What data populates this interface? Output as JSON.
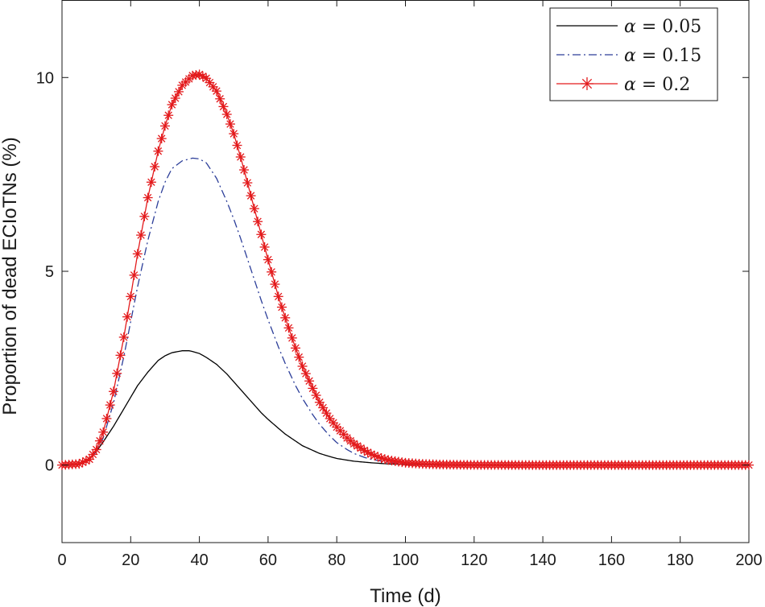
{
  "chart_data": {
    "type": "line",
    "xlabel": "Time (d)",
    "ylabel": "Proportion of dead ECIoTNs (%)",
    "xlim": [
      0,
      200
    ],
    "ylim": [
      -2,
      12
    ],
    "xticks": [
      0,
      20,
      40,
      60,
      80,
      100,
      120,
      140,
      160,
      180,
      200
    ],
    "yticks": [
      0,
      5,
      10
    ],
    "grid": false,
    "legend_position": "top-right",
    "series": [
      {
        "name": "α = 0.05",
        "color": "#000000",
        "style": "solid",
        "marker": "none",
        "x": [
          0,
          5,
          8,
          10,
          12,
          15,
          18,
          20,
          22,
          25,
          28,
          30,
          32,
          35,
          37,
          38,
          40,
          42,
          45,
          48,
          50,
          52,
          55,
          58,
          60,
          63,
          65,
          68,
          70,
          73,
          75,
          78,
          80,
          85,
          90,
          95,
          100,
          110,
          120,
          140,
          160,
          180,
          200
        ],
        "y": [
          0,
          0.02,
          0.15,
          0.35,
          0.6,
          1.0,
          1.45,
          1.75,
          2.05,
          2.4,
          2.7,
          2.82,
          2.9,
          2.95,
          2.95,
          2.93,
          2.88,
          2.78,
          2.6,
          2.35,
          2.15,
          1.95,
          1.65,
          1.35,
          1.18,
          0.95,
          0.8,
          0.62,
          0.5,
          0.38,
          0.3,
          0.22,
          0.17,
          0.1,
          0.06,
          0.03,
          0.015,
          0.005,
          0.002,
          0,
          0,
          0,
          0
        ]
      },
      {
        "name": "α = 0.15",
        "color": "#2c3e99",
        "style": "dashdot",
        "marker": "none",
        "x": [
          0,
          5,
          8,
          10,
          12,
          15,
          18,
          20,
          22,
          25,
          28,
          30,
          32,
          35,
          38,
          40,
          42,
          45,
          48,
          50,
          52,
          55,
          58,
          60,
          63,
          65,
          68,
          70,
          73,
          75,
          78,
          80,
          83,
          85,
          88,
          90,
          95,
          100,
          105,
          110,
          120,
          140,
          160,
          180,
          200
        ],
        "y": [
          0,
          0.03,
          0.15,
          0.35,
          0.7,
          1.6,
          2.8,
          3.7,
          4.6,
          5.8,
          6.8,
          7.3,
          7.65,
          7.85,
          7.92,
          7.9,
          7.8,
          7.4,
          6.8,
          6.35,
          5.85,
          5.05,
          4.25,
          3.75,
          3.05,
          2.62,
          2.05,
          1.72,
          1.3,
          1.05,
          0.75,
          0.58,
          0.4,
          0.3,
          0.2,
          0.15,
          0.07,
          0.03,
          0.015,
          0.007,
          0.002,
          0,
          0,
          0,
          0
        ]
      },
      {
        "name": "α = 0.2",
        "color": "#e31a1c",
        "style": "solid",
        "marker": "asterisk",
        "x": [
          0,
          5,
          8,
          10,
          12,
          15,
          18,
          20,
          22,
          25,
          28,
          30,
          32,
          35,
          38,
          40,
          42,
          45,
          48,
          50,
          52,
          55,
          58,
          60,
          63,
          65,
          68,
          70,
          73,
          75,
          78,
          80,
          83,
          85,
          88,
          90,
          93,
          95,
          100,
          105,
          110,
          120,
          140,
          160,
          180,
          200
        ],
        "y": [
          0,
          0.03,
          0.15,
          0.4,
          0.85,
          1.9,
          3.3,
          4.35,
          5.45,
          6.9,
          8.1,
          8.75,
          9.3,
          9.8,
          10.05,
          10.08,
          9.98,
          9.65,
          9.05,
          8.55,
          7.95,
          6.95,
          5.95,
          5.3,
          4.35,
          3.8,
          3.02,
          2.55,
          1.98,
          1.62,
          1.2,
          0.98,
          0.7,
          0.55,
          0.38,
          0.28,
          0.18,
          0.13,
          0.06,
          0.03,
          0.015,
          0.004,
          0,
          0,
          0,
          0
        ]
      }
    ]
  },
  "legend": {
    "entries": [
      {
        "symbol": "α",
        "value": " = 0.05"
      },
      {
        "symbol": "α",
        "value": " = 0.15"
      },
      {
        "symbol": "α",
        "value": " = 0.2"
      }
    ]
  }
}
